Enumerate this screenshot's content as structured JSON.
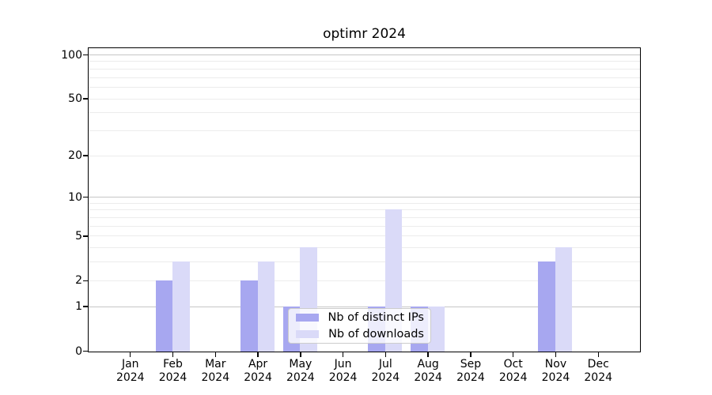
{
  "chart_data": {
    "type": "bar",
    "title": "optimr 2024",
    "categories": [
      "Jan",
      "Feb",
      "Mar",
      "Apr",
      "May",
      "Jun",
      "Jul",
      "Aug",
      "Sep",
      "Oct",
      "Nov",
      "Dec"
    ],
    "year_label": "2024",
    "series": [
      {
        "name": "Nb of distinct IPs",
        "color": "#a7a7f0",
        "values": [
          0,
          2,
          0,
          2,
          1,
          0,
          1,
          1,
          0,
          0,
          3,
          0
        ]
      },
      {
        "name": "Nb of downloads",
        "color": "#dadaf8",
        "values": [
          0,
          3,
          0,
          3,
          4,
          0,
          8,
          1,
          0,
          0,
          4,
          0
        ]
      }
    ],
    "xlabel": "",
    "ylabel": "",
    "yscale": "log10(1+x)",
    "ylim": [
      0,
      100
    ],
    "ytick_labels": [
      "100",
      "50",
      "20",
      "10",
      "5",
      "2",
      "1",
      "0"
    ],
    "ytick_values": [
      100,
      50,
      20,
      10,
      5,
      2,
      1,
      0
    ],
    "minor_grid_values": [
      2,
      3,
      4,
      5,
      6,
      7,
      8,
      9,
      20,
      30,
      40,
      50,
      60,
      70,
      80,
      90
    ],
    "decade_grid_values": [
      1,
      10,
      100
    ],
    "grid": true,
    "legend_position": "lower center",
    "colors": {
      "grid_minor": "#ececec",
      "grid_decade": "#c6c6c6",
      "spine": "#000000",
      "background": "#ffffff"
    }
  }
}
